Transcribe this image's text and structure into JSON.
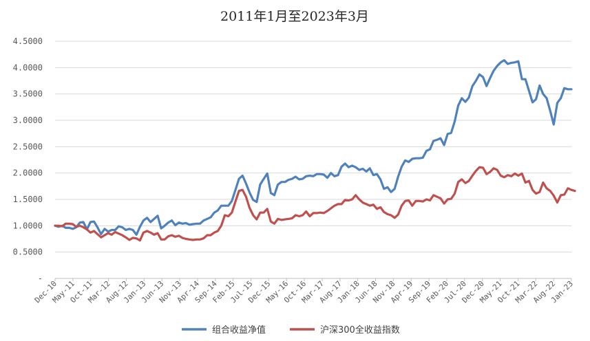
{
  "chart_data": {
    "type": "line",
    "title": "2011年1月至2023年3月",
    "xlabel": "",
    "ylabel": "",
    "ylim": [
      0,
      4.5
    ],
    "y_ticks": [
      "-",
      "0.5000",
      "1.0000",
      "1.5000",
      "2.0000",
      "2.5000",
      "3.0000",
      "3.5000",
      "4.0000",
      "4.5000"
    ],
    "x_ticks": [
      "Dec-10",
      "May-11",
      "Oct-11",
      "Mar-12",
      "Aug-12",
      "Jan-13",
      "Jun-13",
      "Nov-13",
      "Apr-14",
      "Sep-14",
      "Feb-15",
      "Jul-15",
      "Dec-15",
      "May-16",
      "Oct-16",
      "Mar-17",
      "Aug-17",
      "Jan-18",
      "Jun-18",
      "Nov-18",
      "Apr-19",
      "Sep-19",
      "Feb-20",
      "Jul-20",
      "Dec-20",
      "May-21",
      "Oct-21",
      "Mar-22",
      "Aug-22",
      "Jan-23"
    ],
    "grid": true,
    "legend_position": "bottom",
    "series": [
      {
        "name": "组合收益净值",
        "color": "#4f81bd",
        "values": [
          1.0,
          0.98,
          1.0,
          0.96,
          0.96,
          0.94,
          0.97,
          1.06,
          1.07,
          0.93,
          1.07,
          1.08,
          0.97,
          0.84,
          0.94,
          0.89,
          0.92,
          0.92,
          0.99,
          0.97,
          0.92,
          0.94,
          0.92,
          0.83,
          0.98,
          1.1,
          1.15,
          1.07,
          1.13,
          1.19,
          0.95,
          1.0,
          1.06,
          1.1,
          1.01,
          1.06,
          1.04,
          1.05,
          1.02,
          1.03,
          1.04,
          1.04,
          1.1,
          1.13,
          1.16,
          1.25,
          1.29,
          1.38,
          1.38,
          1.38,
          1.47,
          1.68,
          1.89,
          1.95,
          1.8,
          1.63,
          1.49,
          1.45,
          1.78,
          1.89,
          1.99,
          1.62,
          1.58,
          1.78,
          1.83,
          1.83,
          1.87,
          1.89,
          1.93,
          1.88,
          1.89,
          1.94,
          1.95,
          1.94,
          1.98,
          1.98,
          1.97,
          1.91,
          2.0,
          1.94,
          1.96,
          2.12,
          2.18,
          2.11,
          2.14,
          2.11,
          2.06,
          2.08,
          2.03,
          2.09,
          1.96,
          1.98,
          1.88,
          1.7,
          1.73,
          1.64,
          1.7,
          1.93,
          2.12,
          2.24,
          2.21,
          2.27,
          2.28,
          2.28,
          2.29,
          2.42,
          2.45,
          2.61,
          2.63,
          2.66,
          2.53,
          2.74,
          2.76,
          2.98,
          3.28,
          3.42,
          3.35,
          3.43,
          3.65,
          3.75,
          3.87,
          3.82,
          3.65,
          3.8,
          3.94,
          4.03,
          4.1,
          4.14,
          4.07,
          4.09,
          4.1,
          4.12,
          3.78,
          3.78,
          3.56,
          3.34,
          3.4,
          3.66,
          3.5,
          3.42,
          3.18,
          2.92,
          3.33,
          3.42,
          3.61,
          3.59,
          3.59
        ]
      },
      {
        "name": "沪深300全收益指数",
        "color": "#c0504d",
        "values": [
          1.0,
          1.0,
          0.99,
          1.04,
          1.04,
          1.03,
          0.98,
          1.0,
          0.97,
          0.93,
          0.87,
          0.9,
          0.84,
          0.78,
          0.82,
          0.86,
          0.83,
          0.88,
          0.85,
          0.82,
          0.78,
          0.73,
          0.77,
          0.76,
          0.72,
          0.87,
          0.9,
          0.87,
          0.83,
          0.86,
          0.74,
          0.74,
          0.8,
          0.82,
          0.79,
          0.81,
          0.77,
          0.75,
          0.74,
          0.73,
          0.74,
          0.74,
          0.76,
          0.82,
          0.82,
          0.87,
          0.9,
          1.0,
          1.2,
          1.18,
          1.25,
          1.46,
          1.66,
          1.68,
          1.55,
          1.34,
          1.2,
          1.12,
          1.25,
          1.25,
          1.32,
          1.08,
          1.04,
          1.13,
          1.11,
          1.12,
          1.13,
          1.14,
          1.2,
          1.18,
          1.2,
          1.27,
          1.18,
          1.24,
          1.24,
          1.25,
          1.24,
          1.28,
          1.33,
          1.38,
          1.41,
          1.41,
          1.49,
          1.48,
          1.5,
          1.58,
          1.5,
          1.44,
          1.41,
          1.38,
          1.4,
          1.32,
          1.35,
          1.26,
          1.22,
          1.2,
          1.15,
          1.21,
          1.38,
          1.47,
          1.48,
          1.38,
          1.47,
          1.47,
          1.46,
          1.5,
          1.48,
          1.58,
          1.55,
          1.52,
          1.42,
          1.5,
          1.51,
          1.61,
          1.83,
          1.88,
          1.81,
          1.85,
          1.95,
          2.04,
          2.11,
          2.1,
          1.98,
          2.02,
          2.09,
          2.06,
          1.95,
          1.92,
          1.96,
          1.94,
          1.99,
          1.95,
          1.99,
          1.82,
          1.85,
          1.68,
          1.61,
          1.64,
          1.82,
          1.71,
          1.66,
          1.57,
          1.44,
          1.58,
          1.59,
          1.71,
          1.68,
          1.66
        ]
      }
    ]
  }
}
